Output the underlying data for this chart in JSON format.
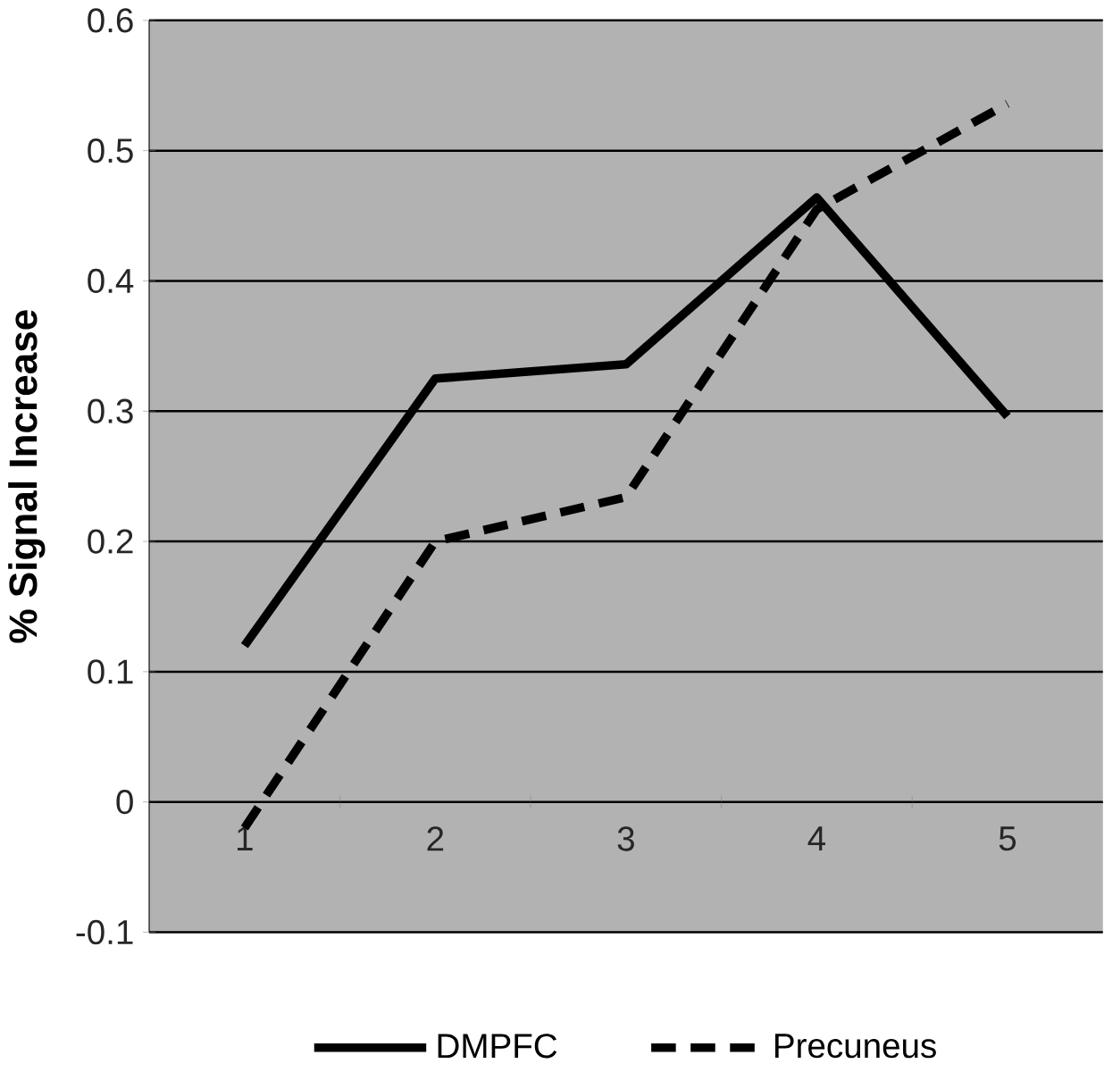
{
  "chart_data": {
    "type": "line",
    "ylabel": "% Signal Increase",
    "categories": [
      "1",
      "2",
      "3",
      "4",
      "5"
    ],
    "series": [
      {
        "name": "DMPFC",
        "color": "#000000",
        "line_style": "solid",
        "values": [
          0.12,
          0.325,
          0.336,
          0.464,
          0.296
        ]
      },
      {
        "name": "Precuneus",
        "color": "#000000",
        "line_style": "dashed",
        "values": [
          -0.02,
          0.2,
          0.234,
          0.455,
          0.536
        ]
      }
    ],
    "ylim": [
      -0.1,
      0.6
    ],
    "yticks": [
      -0.1,
      0,
      0.1,
      0.2,
      0.3,
      0.4,
      0.5,
      0.6
    ],
    "grid": "y",
    "legend": "bottom",
    "marker": "none"
  }
}
